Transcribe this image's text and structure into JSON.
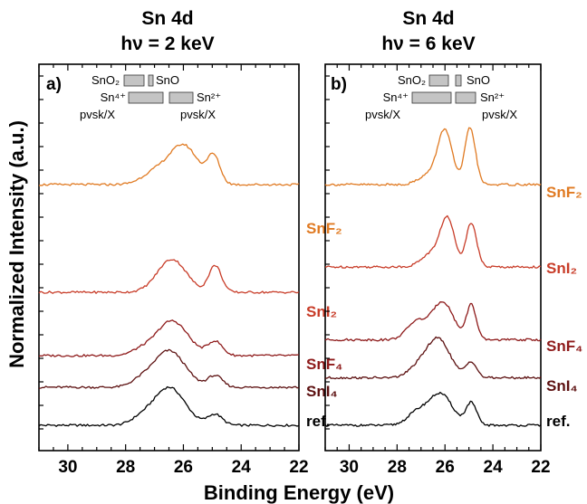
{
  "ylabel": "Normalized Intensity (a.u.)",
  "xlabel": "Binding Energy (eV)",
  "chart_data": [
    {
      "type": "line",
      "panel": "a)",
      "title_line1": "Sn 4d",
      "title_line2": "hν = 2 keV",
      "xlim": [
        31,
        22
      ],
      "xticks": [
        "30",
        "28",
        "26",
        "24",
        "22"
      ],
      "xlabel": "Binding Energy (eV)",
      "ylabel": "Normalized Intensity (a.u.)",
      "reference_bars": {
        "row1": [
          {
            "label": "SnO₂",
            "x": [
              26.6,
              25.5
            ]
          },
          {
            "label": "SnO",
            "x": [
              25.3,
              25.1
            ]
          }
        ],
        "row2": [
          {
            "label": "Sn⁴⁺",
            "x": [
              27.5,
              25.6
            ]
          },
          {
            "label": "Sn²⁺",
            "x": [
              25.4,
              24.8
            ]
          }
        ],
        "row3_labels": [
          "pvsk/X",
          "pvsk/X"
        ]
      },
      "series": [
        {
          "name": "ref.",
          "color": "#000000",
          "offset": 0.0,
          "peaks": [
            [
              26.5,
              0.6,
              0.55
            ],
            [
              24.9,
              0.17,
              0.25
            ],
            [
              27.5,
              0.08,
              0.35
            ]
          ]
        },
        {
          "name": "SnI₄",
          "color": "#5c1010",
          "offset": 0.6,
          "peaks": [
            [
              26.5,
              0.58,
              0.55
            ],
            [
              24.9,
              0.18,
              0.25
            ],
            [
              27.5,
              0.08,
              0.35
            ]
          ]
        },
        {
          "name": "SnF₄",
          "color": "#8e1a1a",
          "offset": 1.1,
          "peaks": [
            [
              26.4,
              0.55,
              0.55
            ],
            [
              24.9,
              0.22,
              0.25
            ],
            [
              27.5,
              0.07,
              0.35
            ]
          ]
        },
        {
          "name": "SnI₂",
          "color": "#c83c28",
          "offset": 2.1,
          "peaks": [
            [
              26.4,
              0.52,
              0.5
            ],
            [
              24.9,
              0.42,
              0.22
            ]
          ]
        },
        {
          "name": "SnF₂",
          "color": "#e07a22",
          "offset": 3.8,
          "peaks": [
            [
              26.0,
              0.62,
              0.5
            ],
            [
              24.95,
              0.42,
              0.22
            ],
            [
              27.0,
              0.18,
              0.45
            ]
          ]
        }
      ]
    },
    {
      "type": "line",
      "panel": "b)",
      "title_line1": "Sn 4d",
      "title_line2": "hν = 6 keV",
      "xlim": [
        31,
        22
      ],
      "xticks": [
        "30",
        "28",
        "26",
        "24",
        "22"
      ],
      "xlabel": "Binding Energy (eV)",
      "ylabel": "Normalized Intensity (a.u.)",
      "reference_bars": {
        "row1": [
          {
            "label": "SnO₂",
            "x": [
              26.4,
              25.8
            ]
          },
          {
            "label": "SnO",
            "x": [
              25.2,
              25.0
            ]
          }
        ],
        "row2": [
          {
            "label": "Sn⁴⁺",
            "x": [
              27.5,
              25.8
            ]
          },
          {
            "label": "Sn²⁺",
            "x": [
              25.5,
              24.6
            ]
          }
        ],
        "row3_labels": [
          "pvsk/X",
          "pvsk/X"
        ]
      },
      "series": [
        {
          "name": "ref.",
          "color": "#000000",
          "offset": 0.0,
          "peaks": [
            [
              26.2,
              0.5,
              0.5
            ],
            [
              24.9,
              0.35,
              0.22
            ],
            [
              27.2,
              0.18,
              0.4
            ]
          ]
        },
        {
          "name": "SnI₄",
          "color": "#5c1010",
          "offset": 0.75,
          "peaks": [
            [
              26.3,
              0.62,
              0.5
            ],
            [
              24.9,
              0.25,
              0.22
            ],
            [
              27.2,
              0.12,
              0.4
            ]
          ]
        },
        {
          "name": "SnF₄",
          "color": "#8e1a1a",
          "offset": 1.35,
          "peaks": [
            [
              26.1,
              0.6,
              0.45
            ],
            [
              24.9,
              0.55,
              0.2
            ],
            [
              27.2,
              0.28,
              0.4
            ]
          ]
        },
        {
          "name": "SnI₂",
          "color": "#c83c28",
          "offset": 2.5,
          "peaks": [
            [
              25.9,
              0.75,
              0.3
            ],
            [
              24.9,
              0.7,
              0.22
            ],
            [
              26.6,
              0.2,
              0.4
            ]
          ]
        },
        {
          "name": "SnF₂",
          "color": "#e07a22",
          "offset": 3.8,
          "peaks": [
            [
              26.0,
              0.85,
              0.3
            ],
            [
              24.95,
              0.9,
              0.22
            ],
            [
              26.7,
              0.15,
              0.4
            ]
          ]
        }
      ]
    }
  ]
}
